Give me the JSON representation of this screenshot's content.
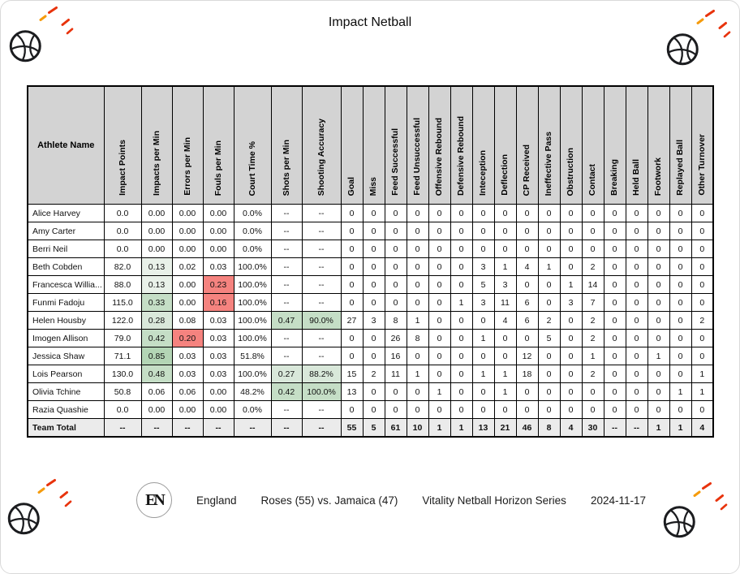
{
  "header": {
    "title": "Impact Netball"
  },
  "palette": {
    "header_bg": "#d3d3d3",
    "total_row_bg": "#ebebeb",
    "green_1": "#e9f1e9",
    "green_2": "#d9e8da",
    "green_3": "#c5dec6",
    "green_4": "#b3d5b5",
    "red": "#f5837f"
  },
  "table": {
    "name_header": "Athlete Name",
    "stat_headers": [
      "Impact Points",
      "Impacts per Min",
      "Errors per Min",
      "Fouls per Min",
      "Court Time %",
      "Shots per Min",
      "Shooting Accuracy",
      "Goal",
      "Miss",
      "Feed Successful",
      "Feed Unsuccessful",
      "Offensive Rebound",
      "Defensive Rebound",
      "Inteception",
      "Deflection",
      "CP Received",
      "Ineffective Pass",
      "Obstruction",
      "Contact",
      "Breaking",
      "Held Ball",
      "Footwork",
      "Replayed Ball",
      "Other Turnover"
    ],
    "rows": [
      {
        "name": "Alice Harvey",
        "values": [
          "0.0",
          "0.00",
          "0.00",
          "0.00",
          "0.0%",
          "--",
          "--",
          "0",
          "0",
          "0",
          "0",
          "0",
          "0",
          "0",
          "0",
          "0",
          "0",
          "0",
          "0",
          "0",
          "0",
          "0",
          "0",
          "0"
        ],
        "highlights": {}
      },
      {
        "name": "Amy Carter",
        "values": [
          "0.0",
          "0.00",
          "0.00",
          "0.00",
          "0.0%",
          "--",
          "--",
          "0",
          "0",
          "0",
          "0",
          "0",
          "0",
          "0",
          "0",
          "0",
          "0",
          "0",
          "0",
          "0",
          "0",
          "0",
          "0",
          "0"
        ],
        "highlights": {}
      },
      {
        "name": "Berri Neil",
        "values": [
          "0.0",
          "0.00",
          "0.00",
          "0.00",
          "0.0%",
          "--",
          "--",
          "0",
          "0",
          "0",
          "0",
          "0",
          "0",
          "0",
          "0",
          "0",
          "0",
          "0",
          "0",
          "0",
          "0",
          "0",
          "0",
          "0"
        ],
        "highlights": {}
      },
      {
        "name": "Beth Cobden",
        "values": [
          "82.0",
          "0.13",
          "0.02",
          "0.03",
          "100.0%",
          "--",
          "--",
          "0",
          "0",
          "0",
          "0",
          "0",
          "0",
          "3",
          "1",
          "4",
          "1",
          "0",
          "2",
          "0",
          "0",
          "0",
          "0",
          "0"
        ],
        "highlights": {
          "1": "green_1"
        }
      },
      {
        "name": "Francesca Willia...",
        "values": [
          "88.0",
          "0.13",
          "0.00",
          "0.23",
          "100.0%",
          "--",
          "--",
          "0",
          "0",
          "0",
          "0",
          "0",
          "0",
          "5",
          "3",
          "0",
          "0",
          "1",
          "14",
          "0",
          "0",
          "0",
          "0",
          "0"
        ],
        "highlights": {
          "1": "green_1",
          "3": "red"
        }
      },
      {
        "name": "Funmi Fadoju",
        "values": [
          "115.0",
          "0.33",
          "0.00",
          "0.16",
          "100.0%",
          "--",
          "--",
          "0",
          "0",
          "0",
          "0",
          "0",
          "1",
          "3",
          "11",
          "6",
          "0",
          "3",
          "7",
          "0",
          "0",
          "0",
          "0",
          "0"
        ],
        "highlights": {
          "1": "green_3",
          "3": "red"
        }
      },
      {
        "name": "Helen Housby",
        "values": [
          "122.0",
          "0.28",
          "0.08",
          "0.03",
          "100.0%",
          "0.47",
          "90.0%",
          "27",
          "3",
          "8",
          "1",
          "0",
          "0",
          "0",
          "4",
          "6",
          "2",
          "0",
          "2",
          "0",
          "0",
          "0",
          "0",
          "2"
        ],
        "highlights": {
          "1": "green_2",
          "5": "green_3",
          "6": "green_3"
        }
      },
      {
        "name": "Imogen Allison",
        "values": [
          "79.0",
          "0.42",
          "0.20",
          "0.03",
          "100.0%",
          "--",
          "--",
          "0",
          "0",
          "26",
          "8",
          "0",
          "0",
          "1",
          "0",
          "0",
          "5",
          "0",
          "2",
          "0",
          "0",
          "0",
          "0",
          "0"
        ],
        "highlights": {
          "1": "green_3",
          "2": "red"
        }
      },
      {
        "name": "Jessica Shaw",
        "values": [
          "71.1",
          "0.85",
          "0.03",
          "0.03",
          "51.8%",
          "--",
          "--",
          "0",
          "0",
          "16",
          "0",
          "0",
          "0",
          "0",
          "0",
          "12",
          "0",
          "0",
          "1",
          "0",
          "0",
          "1",
          "0",
          "0"
        ],
        "highlights": {
          "1": "green_4"
        }
      },
      {
        "name": "Lois Pearson",
        "values": [
          "130.0",
          "0.48",
          "0.03",
          "0.03",
          "100.0%",
          "0.27",
          "88.2%",
          "15",
          "2",
          "11",
          "1",
          "0",
          "0",
          "1",
          "1",
          "18",
          "0",
          "0",
          "2",
          "0",
          "0",
          "0",
          "0",
          "1"
        ],
        "highlights": {
          "1": "green_3",
          "5": "green_2",
          "6": "green_2"
        }
      },
      {
        "name": "Olivia Tchine",
        "values": [
          "50.8",
          "0.06",
          "0.06",
          "0.00",
          "48.2%",
          "0.42",
          "100.0%",
          "13",
          "0",
          "0",
          "0",
          "1",
          "0",
          "0",
          "1",
          "0",
          "0",
          "0",
          "0",
          "0",
          "0",
          "0",
          "1",
          "1"
        ],
        "highlights": {
          "5": "green_3",
          "6": "green_3"
        }
      },
      {
        "name": "Razia Quashie",
        "values": [
          "0.0",
          "0.00",
          "0.00",
          "0.00",
          "0.0%",
          "--",
          "--",
          "0",
          "0",
          "0",
          "0",
          "0",
          "0",
          "0",
          "0",
          "0",
          "0",
          "0",
          "0",
          "0",
          "0",
          "0",
          "0",
          "0"
        ],
        "highlights": {}
      }
    ],
    "total_row": {
      "name": "Team Total",
      "values": [
        "--",
        "--",
        "--",
        "--",
        "--",
        "--",
        "--",
        "55",
        "5",
        "61",
        "10",
        "1",
        "1",
        "13",
        "21",
        "46",
        "8",
        "4",
        "30",
        "--",
        "--",
        "1",
        "1",
        "4"
      ]
    }
  },
  "footer": {
    "monogram": "EN",
    "team": "England",
    "match": "Roses (55) vs. Jamaica (47)",
    "series": "Vitality Netball Horizon Series",
    "date": "2024-11-17"
  }
}
